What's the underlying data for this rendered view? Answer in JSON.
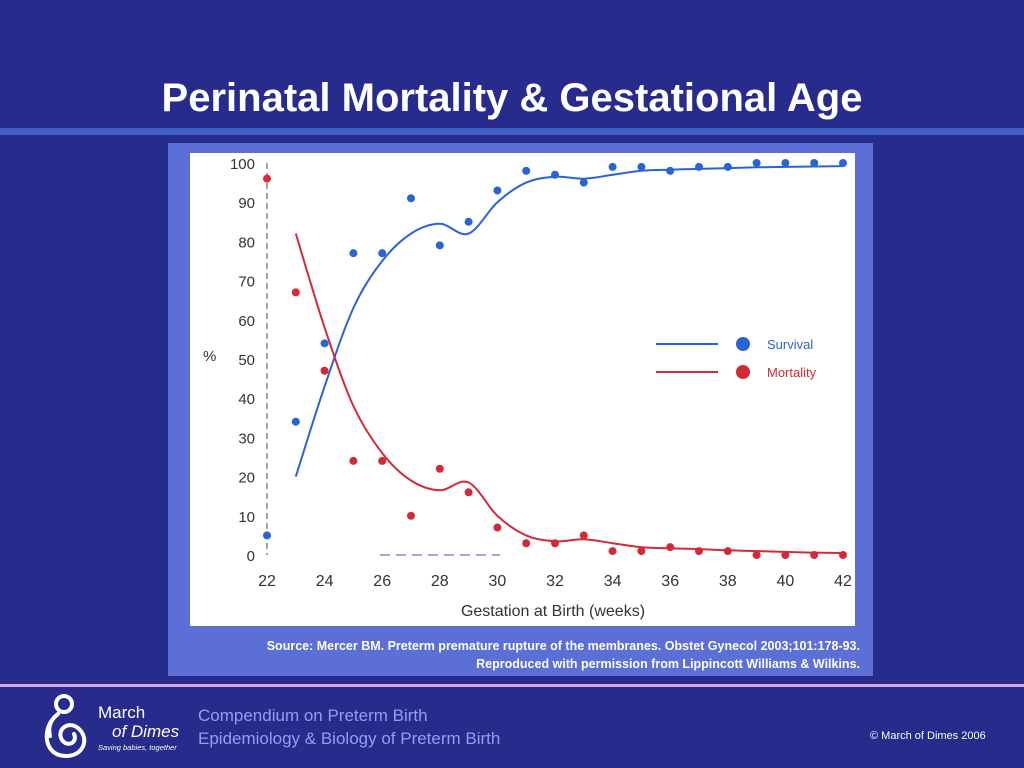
{
  "slide": {
    "title": "Perinatal Mortality & Gestational Age",
    "source_line1": "Source: Mercer BM. Preterm premature rupture of the membranes. Obstet Gynecol 2003;101:178-93.",
    "source_line2": "Reproduced with permission from Lippincott Williams & Wilkins."
  },
  "footer": {
    "line1": "Compendium on Preterm Birth",
    "line2": "Epidemiology & Biology of Preterm Birth",
    "copyright": "©  March of Dimes 2006",
    "logo_line1": "March",
    "logo_line2": "of Dimes",
    "logo_tagline": "Saving babies, together"
  },
  "colors": {
    "background": "#272b8c",
    "survival": "#2a63d4",
    "mortality": "#d42a36"
  },
  "chart_data": {
    "type": "scatter",
    "xlabel": "Gestation at Birth (weeks)",
    "ylabel": "%",
    "xlim": [
      22,
      42
    ],
    "ylim": [
      0,
      100
    ],
    "x_ticks": [
      22,
      24,
      26,
      28,
      30,
      32,
      34,
      36,
      38,
      40,
      42
    ],
    "y_ticks": [
      0,
      10,
      20,
      30,
      40,
      50,
      60,
      70,
      80,
      90,
      100
    ],
    "legend_position": "right",
    "series": [
      {
        "name": "Survival",
        "color": "#2a63d4",
        "points": [
          [
            22,
            5
          ],
          [
            23,
            34
          ],
          [
            24,
            54
          ],
          [
            25,
            77
          ],
          [
            26,
            77
          ],
          [
            27,
            91
          ],
          [
            28,
            79
          ],
          [
            29,
            85
          ],
          [
            30,
            93
          ],
          [
            31,
            98
          ],
          [
            32,
            97
          ],
          [
            33,
            95
          ],
          [
            34,
            99
          ],
          [
            35,
            99
          ],
          [
            36,
            98
          ],
          [
            37,
            99
          ],
          [
            38,
            99
          ],
          [
            39,
            100
          ],
          [
            40,
            100
          ],
          [
            41,
            100
          ],
          [
            42,
            100
          ]
        ],
        "curve": [
          [
            23,
            20
          ],
          [
            24,
            43
          ],
          [
            25,
            63
          ],
          [
            26,
            75
          ],
          [
            27,
            82
          ],
          [
            28,
            84.5
          ],
          [
            29,
            82
          ],
          [
            30,
            90
          ],
          [
            31,
            95
          ],
          [
            32,
            96.5
          ],
          [
            33,
            96
          ],
          [
            34,
            97
          ],
          [
            35,
            98
          ],
          [
            36,
            98.3
          ],
          [
            37,
            98.5
          ],
          [
            38,
            98.7
          ],
          [
            39,
            98.9
          ],
          [
            40,
            99
          ],
          [
            41,
            99.1
          ],
          [
            42,
            99.2
          ]
        ]
      },
      {
        "name": "Mortality",
        "color": "#d42a36",
        "points": [
          [
            22,
            96
          ],
          [
            23,
            67
          ],
          [
            24,
            47
          ],
          [
            25,
            24
          ],
          [
            26,
            24
          ],
          [
            27,
            10
          ],
          [
            28,
            22
          ],
          [
            29,
            16
          ],
          [
            30,
            7
          ],
          [
            31,
            3
          ],
          [
            32,
            3
          ],
          [
            33,
            5
          ],
          [
            34,
            1
          ],
          [
            35,
            1
          ],
          [
            36,
            2
          ],
          [
            37,
            1
          ],
          [
            38,
            1
          ],
          [
            39,
            0
          ],
          [
            40,
            0
          ],
          [
            41,
            0
          ],
          [
            42,
            0
          ]
        ],
        "curve": [
          [
            23,
            82
          ],
          [
            24,
            58
          ],
          [
            25,
            38
          ],
          [
            26,
            26
          ],
          [
            27,
            19
          ],
          [
            28,
            16.5
          ],
          [
            29,
            18.5
          ],
          [
            30,
            10
          ],
          [
            31,
            5
          ],
          [
            32,
            3.5
          ],
          [
            33,
            4
          ],
          [
            34,
            3
          ],
          [
            35,
            2
          ],
          [
            36,
            1.7
          ],
          [
            37,
            1.5
          ],
          [
            38,
            1.2
          ],
          [
            39,
            1
          ],
          [
            40,
            0.8
          ],
          [
            41,
            0.6
          ],
          [
            42,
            0.5
          ]
        ]
      }
    ]
  }
}
